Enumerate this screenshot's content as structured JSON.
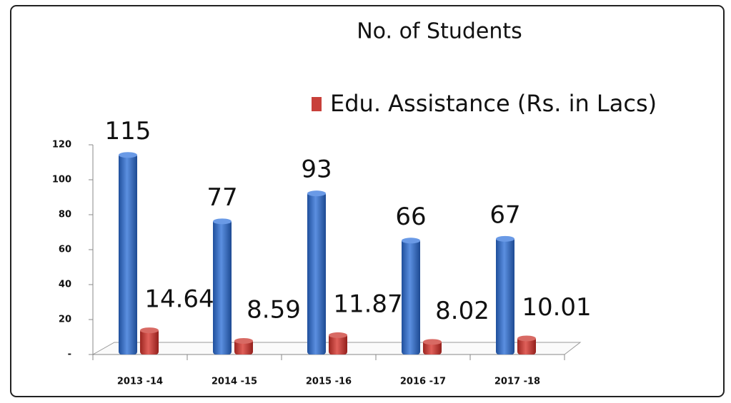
{
  "chart_data": {
    "type": "bar",
    "categories": [
      "2013 -14",
      "2014 -15",
      "2015 -16",
      "2016 -17",
      "2017 -18"
    ],
    "series": [
      {
        "name": "No. of Students",
        "color": "#3a6fc4",
        "values": [
          115,
          77,
          93,
          66,
          67
        ]
      },
      {
        "name": "Edu. Assistance (Rs. in Lacs)",
        "color": "#c8403a",
        "values": [
          14.64,
          8.59,
          11.87,
          8.02,
          10.01
        ]
      }
    ],
    "ylim": [
      0,
      120
    ],
    "yticks": [
      {
        "value": 0,
        "label": "-"
      },
      20,
      40,
      60,
      80,
      100,
      120
    ]
  }
}
